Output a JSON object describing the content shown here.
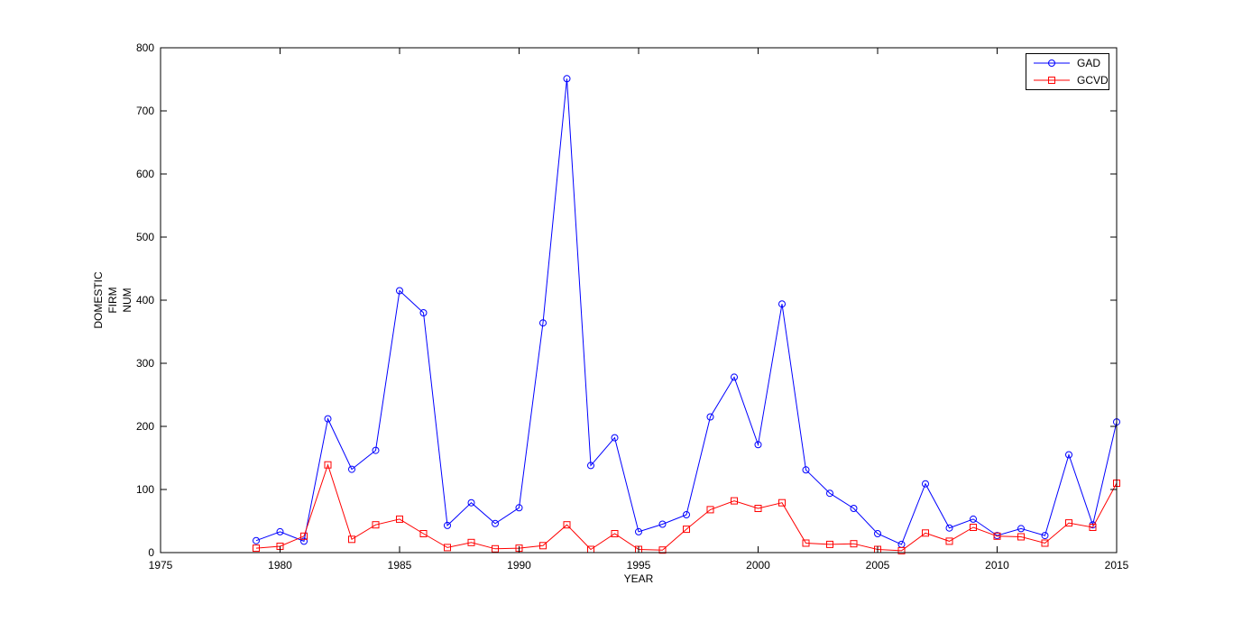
{
  "figure": {
    "background": "#ffffff"
  },
  "chart_data": {
    "type": "line",
    "title": "",
    "xlabel": "YEAR",
    "ylabel": "DOMESTIC FIRM NUM",
    "ylabel_lines": [
      "DOMESTIC",
      "FIRM",
      "NUM"
    ],
    "xlim": [
      1975,
      2015
    ],
    "ylim": [
      0,
      800
    ],
    "x_ticks": [
      1975,
      1980,
      1985,
      1990,
      1995,
      2000,
      2005,
      2010,
      2015
    ],
    "y_ticks": [
      0,
      100,
      200,
      300,
      400,
      500,
      600,
      700,
      800
    ],
    "grid": false,
    "legend_position": "top-right",
    "axis_color": "#000000",
    "x": [
      1979,
      1980,
      1981,
      1982,
      1983,
      1984,
      1985,
      1986,
      1987,
      1988,
      1989,
      1990,
      1991,
      1992,
      1993,
      1994,
      1995,
      1996,
      1997,
      1998,
      1999,
      2000,
      2001,
      2002,
      2003,
      2004,
      2005,
      2006,
      2007,
      2008,
      2009,
      2010,
      2011,
      2012,
      2013,
      2014,
      2015
    ],
    "series": [
      {
        "name": "GAD",
        "color": "#0000ff",
        "marker": "circle",
        "values": [
          19,
          33,
          18,
          212,
          132,
          162,
          415,
          380,
          43,
          79,
          46,
          71,
          364,
          751,
          138,
          182,
          33,
          45,
          60,
          215,
          278,
          171,
          394,
          131,
          94,
          70,
          30,
          13,
          109,
          39,
          53,
          27,
          38,
          27,
          155,
          44,
          207
        ]
      },
      {
        "name": "GCVD",
        "color": "#ff0000",
        "marker": "square",
        "values": [
          7,
          10,
          26,
          139,
          21,
          44,
          53,
          30,
          8,
          16,
          6,
          7,
          11,
          44,
          5,
          30,
          5,
          4,
          37,
          68,
          82,
          70,
          79,
          15,
          13,
          14,
          5,
          3,
          31,
          18,
          40,
          26,
          25,
          15,
          47,
          40,
          110
        ]
      }
    ]
  },
  "legend": {
    "items": [
      {
        "label": "GAD"
      },
      {
        "label": "GCVD"
      }
    ]
  }
}
